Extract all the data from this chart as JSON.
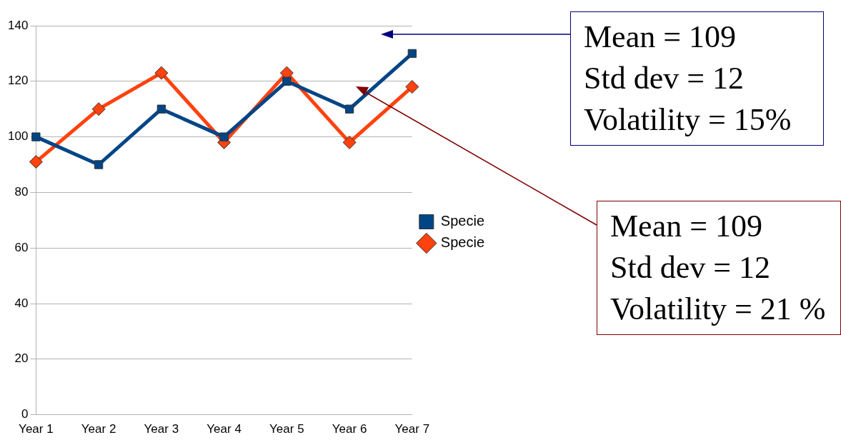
{
  "chart_data": {
    "type": "line",
    "categories": [
      "Year 1",
      "Year 2",
      "Year 3",
      "Year 4",
      "Year 5",
      "Year 6",
      "Year 7"
    ],
    "series": [
      {
        "name": "Specie",
        "color": "#004586",
        "marker": "square",
        "values": [
          100,
          90,
          110,
          100,
          120,
          110,
          130
        ]
      },
      {
        "name": "Specie",
        "color": "#ff420e",
        "marker": "diamond",
        "values": [
          91,
          110,
          123,
          98,
          123,
          98,
          118
        ]
      }
    ],
    "ylim": [
      0,
      140
    ],
    "yticks": [
      0,
      20,
      40,
      60,
      80,
      100,
      120,
      140
    ],
    "grid": "y",
    "legend": "right",
    "line_style": "solid",
    "annotations": [
      "Mean = 109\nStd dev = 12\nVolatility = 15%",
      "Mean = 109\nStd dev = 12\nVolatility = 21 %"
    ]
  }
}
